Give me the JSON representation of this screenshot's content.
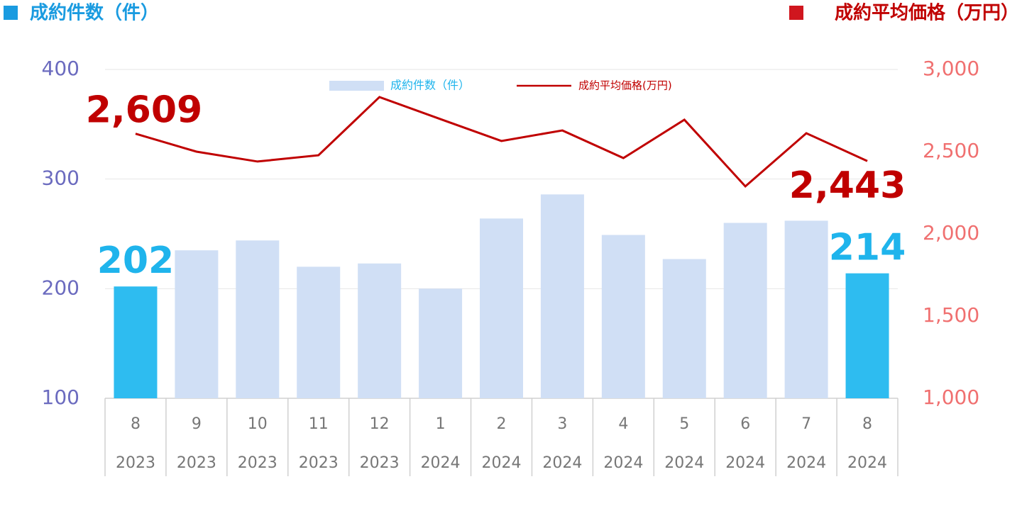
{
  "chart_data": {
    "type": "bar_line",
    "title_left": "成約件数（件）",
    "title_right": "成約平均価格（万円）",
    "categories": [
      "8",
      "9",
      "10",
      "11",
      "12",
      "1",
      "2",
      "3",
      "4",
      "5",
      "6",
      "7",
      "8"
    ],
    "category_years": [
      "2023",
      "2023",
      "2023",
      "2023",
      "2023",
      "2024",
      "2024",
      "2024",
      "2024",
      "2024",
      "2024",
      "2024",
      "2024"
    ],
    "series": [
      {
        "name": "成約件数（件）",
        "type": "bar",
        "axis": "y",
        "color": "#d0dff5",
        "colors": [
          "#2ebcf0",
          "#d0dff5",
          "#d0dff5",
          "#d0dff5",
          "#d0dff5",
          "#d0dff5",
          "#d0dff5",
          "#d0dff5",
          "#d0dff5",
          "#d0dff5",
          "#d0dff5",
          "#d0dff5",
          "#2ebcf0"
        ],
        "values": [
          202,
          235,
          244,
          220,
          223,
          200,
          264,
          286,
          249,
          227,
          260,
          262,
          214
        ],
        "value_labels": [
          "202",
          null,
          null,
          null,
          null,
          null,
          null,
          null,
          null,
          null,
          null,
          null,
          "214"
        ],
        "label_color": "#1fb4ec"
      },
      {
        "name": "成約平均価格(万円)",
        "type": "line",
        "axis": "y2",
        "color": "#c00000",
        "values": [
          2609,
          2500,
          2440,
          2478,
          2832,
          2698,
          2565,
          2629,
          2461,
          2694,
          2289,
          2612,
          2443
        ],
        "value_labels": [
          "2,609",
          null,
          null,
          null,
          null,
          null,
          null,
          null,
          null,
          null,
          null,
          null,
          "2,443"
        ],
        "label_color": "#c00000"
      }
    ],
    "ylim": [
      100,
      400
    ],
    "yticks": [
      100,
      200,
      300,
      400
    ],
    "y2lim": [
      1000,
      3000
    ],
    "y2ticks": [
      {
        "value": 1000,
        "label": "1,000"
      },
      {
        "value": 1500,
        "label": "1,500"
      },
      {
        "value": 2000,
        "label": "2,000"
      },
      {
        "value": 2500,
        "label": "2,500"
      },
      {
        "value": 3000,
        "label": "3,000"
      }
    ],
    "grid": true
  }
}
